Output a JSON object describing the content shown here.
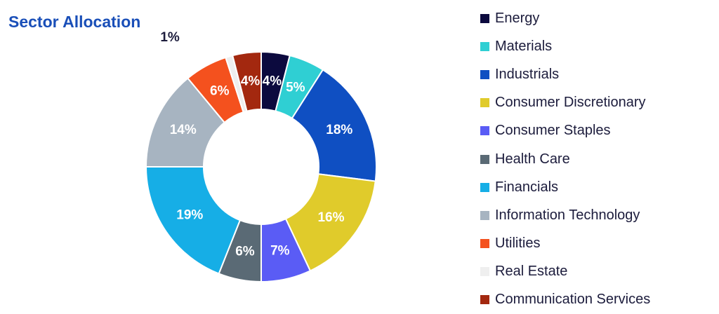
{
  "chart_data": {
    "type": "pie",
    "title": "Sector Allocation",
    "categories": [
      "Energy",
      "Materials",
      "Industrials",
      "Consumer Discretionary",
      "Consumer Staples",
      "Health Care",
      "Financials",
      "Information Technology",
      "Utilities",
      "Real Estate",
      "Communication Services"
    ],
    "values": [
      4,
      5,
      18,
      16,
      7,
      6,
      19,
      14,
      6,
      1,
      4
    ],
    "colors": [
      "#0c0a3e",
      "#2fcfd3",
      "#0f4fc2",
      "#e0cb2b",
      "#5a5cf5",
      "#5a6a75",
      "#16aee6",
      "#a7b4c1",
      "#f4511e",
      "#eeeeee",
      "#a3280f"
    ],
    "data_labels": [
      "4%",
      "5%",
      "18%",
      "16%",
      "7%",
      "6%",
      "19%",
      "14%",
      "6%",
      "1%",
      "4%"
    ],
    "legend_position": "right"
  }
}
